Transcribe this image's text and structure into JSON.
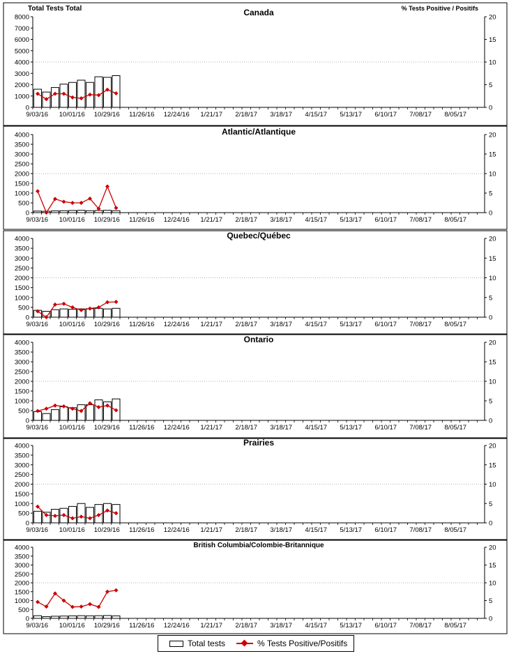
{
  "colors": {
    "bar_fill": "#ffffff",
    "bar_stroke": "#000000",
    "line": "#cc0000",
    "marker": "#cc0000",
    "grid": "#999999"
  },
  "header": {
    "left_axis_title": "Total Tests Total",
    "right_axis_title": "% Tests Positive / Positifs"
  },
  "legend": {
    "bars": "Total tests",
    "line": "% Tests Positive/Positifs"
  },
  "x_tick_labels": [
    "9/03/16",
    "10/01/16",
    "10/29/16",
    "11/26/16",
    "12/24/16",
    "1/21/17",
    "2/18/17",
    "3/18/17",
    "4/15/17",
    "5/13/17",
    "6/10/17",
    "7/08/17",
    "8/05/17"
  ],
  "chart_data": [
    {
      "type": "bar",
      "title": "Canada",
      "ylim": [
        0,
        8000
      ],
      "y2lim": [
        0,
        20
      ],
      "yticks": [
        0,
        1000,
        2000,
        3000,
        4000,
        5000,
        6000,
        7000,
        8000
      ],
      "y2ticks": [
        0,
        5,
        10,
        15,
        20
      ],
      "grid_y2": 10,
      "categories": [
        "9/03/16",
        "9/10/16",
        "9/17/16",
        "9/24/16",
        "10/01/16",
        "10/08/16",
        "10/15/16",
        "10/22/16",
        "10/29/16",
        "11/05/16"
      ],
      "series": [
        {
          "name": "Total tests",
          "axis": "left",
          "values": [
            1600,
            1350,
            1750,
            2050,
            2200,
            2400,
            2200,
            2700,
            2650,
            2800
          ]
        },
        {
          "name": "% Tests Positive/Positifs",
          "axis": "right",
          "values": [
            3.0,
            1.8,
            3.0,
            3.0,
            2.2,
            2.0,
            2.8,
            2.7,
            3.9,
            3.1
          ]
        }
      ]
    },
    {
      "type": "bar",
      "title": "Atlantic/Atlantique",
      "ylim": [
        0,
        4000
      ],
      "y2lim": [
        0,
        20
      ],
      "yticks": [
        0,
        500,
        1000,
        1500,
        2000,
        2500,
        3000,
        3500,
        4000
      ],
      "y2ticks": [
        0,
        5,
        10,
        15,
        20
      ],
      "grid_y2": 10,
      "categories": [
        "9/03/16",
        "9/10/16",
        "9/17/16",
        "9/24/16",
        "10/01/16",
        "10/08/16",
        "10/15/16",
        "10/22/16",
        "10/29/16",
        "11/05/16"
      ],
      "series": [
        {
          "name": "Total tests",
          "axis": "left",
          "values": [
            80,
            70,
            90,
            100,
            110,
            120,
            100,
            110,
            120,
            100
          ]
        },
        {
          "name": "% Tests Positive/Positifs",
          "axis": "right",
          "values": [
            5.5,
            0.0,
            3.5,
            2.8,
            2.5,
            2.5,
            3.6,
            1.0,
            6.7,
            1.2
          ]
        }
      ]
    },
    {
      "type": "bar",
      "title": "Quebec/Québec",
      "ylim": [
        0,
        4000
      ],
      "y2lim": [
        0,
        20
      ],
      "yticks": [
        0,
        500,
        1000,
        1500,
        2000,
        2500,
        3000,
        3500,
        4000
      ],
      "y2ticks": [
        0,
        5,
        10,
        15,
        20
      ],
      "grid_y2": 10,
      "categories": [
        "9/03/16",
        "9/10/16",
        "9/17/16",
        "9/24/16",
        "10/01/16",
        "10/08/16",
        "10/15/16",
        "10/22/16",
        "10/29/16",
        "11/05/16"
      ],
      "series": [
        {
          "name": "Total tests",
          "axis": "left",
          "values": [
            350,
            300,
            380,
            420,
            400,
            420,
            430,
            450,
            420,
            450
          ]
        },
        {
          "name": "% Tests Positive/Positifs",
          "axis": "right",
          "values": [
            1.5,
            0.0,
            3.2,
            3.4,
            2.5,
            1.8,
            2.2,
            2.5,
            3.8,
            3.9
          ]
        }
      ]
    },
    {
      "type": "bar",
      "title": "Ontario",
      "ylim": [
        0,
        4000
      ],
      "y2lim": [
        0,
        20
      ],
      "yticks": [
        0,
        500,
        1000,
        1500,
        2000,
        2500,
        3000,
        3500,
        4000
      ],
      "y2ticks": [
        0,
        5,
        10,
        15,
        20
      ],
      "grid_y2": 10,
      "categories": [
        "9/03/16",
        "9/10/16",
        "9/17/16",
        "9/24/16",
        "10/01/16",
        "10/08/16",
        "10/15/16",
        "10/22/16",
        "10/29/16",
        "11/05/16"
      ],
      "series": [
        {
          "name": "Total tests",
          "axis": "left",
          "values": [
            450,
            350,
            550,
            700,
            650,
            800,
            800,
            1050,
            950,
            1100
          ]
        },
        {
          "name": "% Tests Positive/Positifs",
          "axis": "right",
          "values": [
            2.4,
            3.0,
            3.8,
            3.6,
            3.0,
            2.4,
            4.4,
            3.4,
            3.8,
            2.6
          ]
        }
      ]
    },
    {
      "type": "bar",
      "title": "Prairies",
      "ylim": [
        0,
        4000
      ],
      "y2lim": [
        0,
        20
      ],
      "yticks": [
        0,
        500,
        1000,
        1500,
        2000,
        2500,
        3000,
        3500,
        4000
      ],
      "y2ticks": [
        0,
        5,
        10,
        15,
        20
      ],
      "grid_y2": 10,
      "categories": [
        "9/03/16",
        "9/10/16",
        "9/17/16",
        "9/24/16",
        "10/01/16",
        "10/08/16",
        "10/15/16",
        "10/22/16",
        "10/29/16",
        "11/05/16"
      ],
      "series": [
        {
          "name": "Total tests",
          "axis": "left",
          "values": [
            600,
            550,
            700,
            750,
            850,
            1000,
            800,
            950,
            1000,
            950
          ]
        },
        {
          "name": "% Tests Positive/Positifs",
          "axis": "right",
          "values": [
            4.2,
            2.0,
            1.8,
            2.0,
            1.2,
            1.6,
            1.2,
            2.0,
            3.2,
            2.5
          ]
        }
      ]
    },
    {
      "type": "bar",
      "title": "British Columbia/Colombie-Britannique",
      "ylim": [
        0,
        4000
      ],
      "y2lim": [
        0,
        20
      ],
      "yticks": [
        0,
        500,
        1000,
        1500,
        2000,
        2500,
        3000,
        3500,
        4000
      ],
      "y2ticks": [
        0,
        5,
        10,
        15,
        20
      ],
      "grid_y2": 10,
      "categories": [
        "9/03/16",
        "9/10/16",
        "9/17/16",
        "9/24/16",
        "10/01/16",
        "10/08/16",
        "10/15/16",
        "10/22/16",
        "10/29/16",
        "11/05/16"
      ],
      "series": [
        {
          "name": "Total tests",
          "axis": "left",
          "values": [
            150,
            100,
            120,
            130,
            140,
            150,
            140,
            150,
            160,
            140
          ]
        },
        {
          "name": "% Tests Positive/Positifs",
          "axis": "right",
          "values": [
            4.6,
            3.3,
            7.0,
            5.0,
            3.2,
            3.3,
            4.0,
            3.2,
            7.5,
            7.9
          ]
        }
      ]
    }
  ]
}
